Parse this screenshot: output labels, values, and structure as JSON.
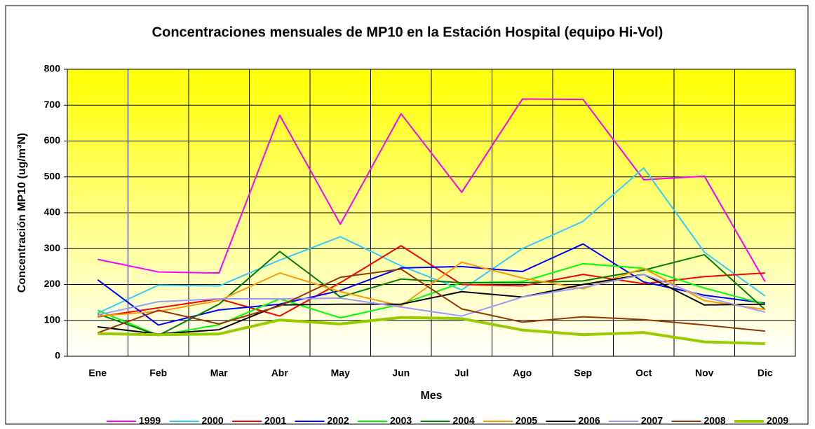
{
  "chart_data": {
    "type": "line",
    "title": "Concentraciones mensuales de MP10 en la Estación Hospital (equipo Hi-Vol)",
    "x_label": "Mes",
    "y_label": "Concentración MP10 (ug/m³N)",
    "categories": [
      "Ene",
      "Feb",
      "Mar",
      "Abr",
      "May",
      "Jun",
      "Jul",
      "Ago",
      "Sep",
      "Oct",
      "Nov",
      "Dic"
    ],
    "ylim": [
      0,
      800
    ],
    "yticks": [
      0,
      100,
      200,
      300,
      400,
      500,
      600,
      700,
      800
    ],
    "grid": true,
    "legend": "bottom",
    "series": [
      {
        "name": "1999",
        "color": "#ff00ff",
        "values": [
          270,
          235,
          232,
          672,
          368,
          676,
          457,
          717,
          716,
          492,
          502,
          208
        ]
      },
      {
        "name": "2000",
        "color": "#33ccff",
        "values": [
          120,
          198,
          196,
          268,
          333,
          252,
          185,
          300,
          376,
          525,
          290,
          168
        ]
      },
      {
        "name": "2001",
        "color": "#ff0000",
        "values": [
          110,
          135,
          160,
          112,
          205,
          308,
          200,
          196,
          228,
          202,
          222,
          232
        ]
      },
      {
        "name": "2002",
        "color": "#0000ff",
        "values": [
          213,
          87,
          129,
          145,
          183,
          246,
          250,
          236,
          313,
          207,
          170,
          148
        ]
      },
      {
        "name": "2003",
        "color": "#00ff00",
        "values": [
          128,
          58,
          88,
          160,
          107,
          145,
          205,
          208,
          258,
          245,
          190,
          145
        ]
      },
      {
        "name": "2004",
        "color": "#008000",
        "values": [
          118,
          58,
          145,
          292,
          165,
          215,
          205,
          205,
          210,
          240,
          283,
          130
        ]
      },
      {
        "name": "2005",
        "color": "#ff9900",
        "values": [
          112,
          125,
          155,
          232,
          180,
          140,
          262,
          218,
          188,
          245,
          155,
          130
        ]
      },
      {
        "name": "2006",
        "color": "#000000",
        "values": [
          82,
          62,
          74,
          143,
          145,
          145,
          180,
          165,
          200,
          228,
          143,
          145
        ]
      },
      {
        "name": "2007",
        "color": "#9999ff",
        "values": [
          115,
          152,
          160,
          160,
          162,
          137,
          112,
          165,
          192,
          228,
          165,
          123
        ]
      },
      {
        "name": "2008",
        "color": "#993300",
        "values": [
          65,
          128,
          90,
          140,
          220,
          243,
          132,
          95,
          110,
          102,
          87,
          70
        ]
      },
      {
        "name": "2009",
        "color": "#99cc00",
        "values": [
          63,
          60,
          62,
          101,
          90,
          108,
          105,
          73,
          60,
          66,
          40,
          35
        ]
      }
    ]
  }
}
